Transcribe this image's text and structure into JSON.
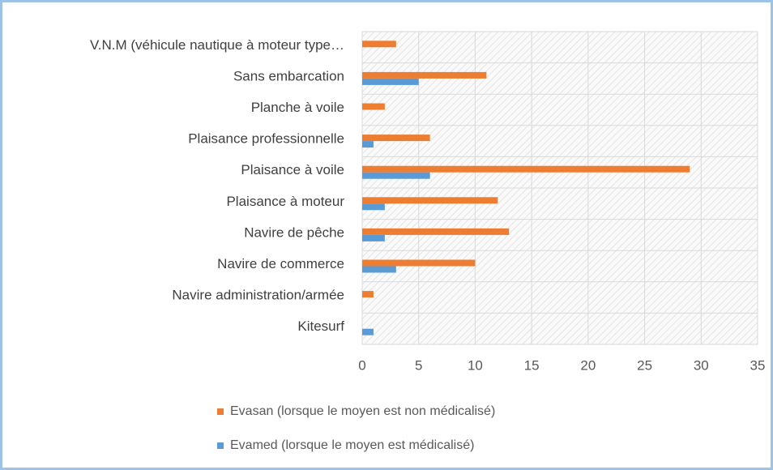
{
  "chart_data": {
    "type": "hbar",
    "categories": [
      "V.N.M (véhicule nautique à moteur type…",
      "Sans embarcation",
      "Planche à voile",
      "Plaisance professionnelle",
      "Plaisance à voile",
      "Plaisance à moteur",
      "Navire de pêche",
      "Navire de commerce",
      "Navire administration/armée",
      "Kitesurf"
    ],
    "series": [
      {
        "name": "Evasan (lorsque le moyen est non médicalisé)",
        "color": "#ed7d31",
        "values": [
          3,
          11,
          2,
          6,
          29,
          12,
          13,
          10,
          1,
          0
        ]
      },
      {
        "name": "Evamed (lorsque le moyen est médicalisé)",
        "color": "#5b9bd5",
        "values": [
          0,
          5,
          0,
          1,
          6,
          2,
          2,
          3,
          0,
          1
        ]
      }
    ],
    "xlim": [
      0,
      35
    ],
    "xticks": [
      0,
      5,
      10,
      15,
      20,
      25,
      30,
      35
    ],
    "grid": true,
    "legend": "bottom"
  }
}
